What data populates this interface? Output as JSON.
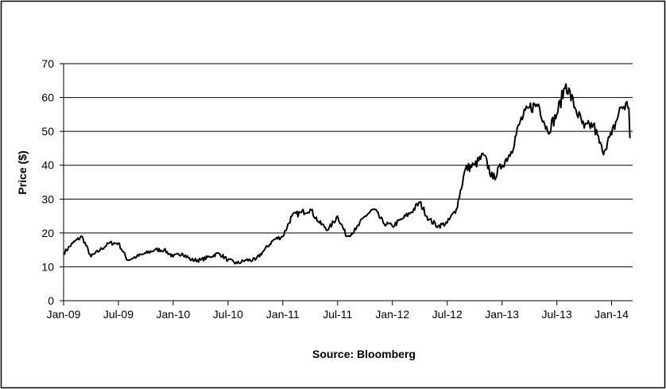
{
  "chart_data": {
    "type": "line",
    "title": "",
    "xlabel": "",
    "ylabel": "Price ($)",
    "ylim": [
      0,
      70
    ],
    "yticks": [
      0,
      10,
      20,
      30,
      40,
      50,
      60,
      70
    ],
    "xlim": [
      "2009-01",
      "2014-03"
    ],
    "xticks": [
      {
        "date": "2009-01",
        "label": "Jan-09"
      },
      {
        "date": "2009-07",
        "label": "Jul-09"
      },
      {
        "date": "2010-01",
        "label": "Jan-10"
      },
      {
        "date": "2010-07",
        "label": "Jul-10"
      },
      {
        "date": "2011-01",
        "label": "Jan-11"
      },
      {
        "date": "2011-07",
        "label": "Jul-11"
      },
      {
        "date": "2012-01",
        "label": "Jan-12"
      },
      {
        "date": "2012-07",
        "label": "Jul-12"
      },
      {
        "date": "2013-01",
        "label": "Jan-13"
      },
      {
        "date": "2013-07",
        "label": "Jul-13"
      },
      {
        "date": "2014-01",
        "label": "Jan-14"
      }
    ],
    "grid": "horizontal",
    "legend": "none",
    "line_color": "#000000",
    "annotation": "Source:  Bloomberg",
    "series": [
      {
        "x": [
          "2009-01",
          "2009-02",
          "2009-03",
          "2009-04",
          "2009-05",
          "2009-06",
          "2009-07",
          "2009-08",
          "2009-09",
          "2009-10",
          "2009-11",
          "2009-12",
          "2010-01",
          "2010-02",
          "2010-03",
          "2010-04",
          "2010-05",
          "2010-06",
          "2010-07",
          "2010-08",
          "2010-09",
          "2010-10",
          "2010-11",
          "2010-12",
          "2011-01",
          "2011-02",
          "2011-03",
          "2011-04",
          "2011-05",
          "2011-06",
          "2011-07",
          "2011-08",
          "2011-09",
          "2011-10",
          "2011-11",
          "2011-12",
          "2012-01",
          "2012-02",
          "2012-03",
          "2012-04",
          "2012-05",
          "2012-06",
          "2012-07",
          "2012-08",
          "2012-09",
          "2012-10",
          "2012-11",
          "2012-12",
          "2013-01",
          "2013-02",
          "2013-03",
          "2013-04",
          "2013-05",
          "2013-06",
          "2013-07",
          "2013-08",
          "2013-09",
          "2013-10",
          "2013-11",
          "2013-12",
          "2014-01",
          "2014-02",
          "2014-03"
        ],
        "values": [
          14,
          17,
          19,
          13,
          15,
          17,
          17,
          12,
          13,
          14,
          15,
          15,
          13,
          14,
          12,
          12,
          13,
          14,
          12,
          11,
          12,
          12,
          15,
          18,
          19,
          25,
          26,
          27,
          23,
          21,
          25,
          19,
          21,
          25,
          27,
          23,
          22,
          24,
          26,
          29,
          24,
          22,
          23,
          27,
          39,
          40,
          43,
          36,
          40,
          44,
          53,
          57,
          58,
          50,
          55,
          64,
          57,
          51,
          52,
          44,
          49,
          57,
          58
        ]
      }
    ]
  }
}
